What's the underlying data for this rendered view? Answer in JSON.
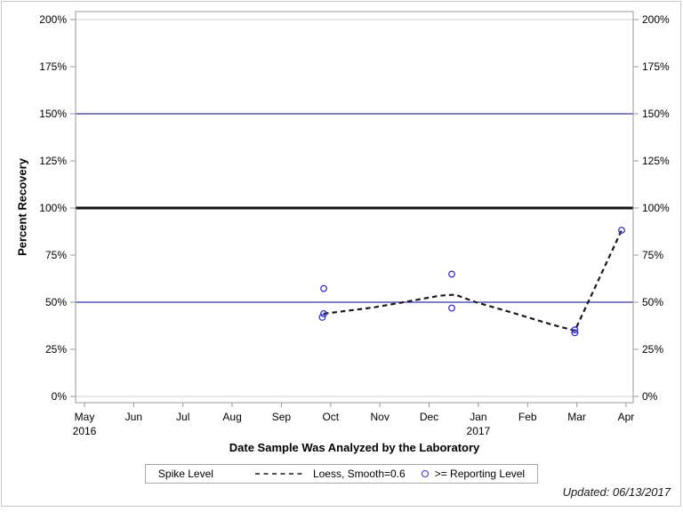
{
  "chart_data": {
    "type": "scatter",
    "title": "",
    "xlabel": "Date Sample Was Analyzed by the Laboratory",
    "ylabel": "Percent Recovery",
    "x_axis": {
      "unit": "month",
      "tick_labels": [
        "May",
        "Jun",
        "Jul",
        "Aug",
        "Sep",
        "Oct",
        "Nov",
        "Dec",
        "Jan",
        "Feb",
        "Mar",
        "Apr"
      ],
      "year_labels": [
        {
          "index": 0,
          "label": "2016"
        },
        {
          "index": 8,
          "label": "2017"
        }
      ],
      "range_note": "May 2016 through Apr 2017"
    },
    "y_axis": {
      "min": 0,
      "max": 200,
      "step": 25,
      "tick_labels": [
        "0%",
        "25%",
        "50%",
        "75%",
        "100%",
        "125%",
        "150%",
        "175%",
        "200%"
      ],
      "mirrored_right": true
    },
    "reference_lines": [
      {
        "value": 200,
        "color": "#d0d0d0",
        "width": 1
      },
      {
        "value": 150,
        "color": "#3434a8",
        "width": 1.2
      },
      {
        "value": 100,
        "color": "#151515",
        "width": 3
      },
      {
        "value": 50,
        "color": "#3434a8",
        "width": 1.2
      },
      {
        "value": 0,
        "color": "#d0d0d0",
        "width": 1
      }
    ],
    "series": [
      {
        "name": "Loess, Smooth=0.6",
        "type": "line",
        "style": "dashed",
        "color": "#1a1a1a",
        "x_unit": "months since 2016-05-01",
        "points": [
          {
            "x": 4.86,
            "y": 43.9
          },
          {
            "x": 5.87,
            "y": 47.2
          },
          {
            "x": 6.59,
            "y": 50.5
          },
          {
            "x": 7.22,
            "y": 53.5
          },
          {
            "x": 7.53,
            "y": 54.0
          },
          {
            "x": 7.95,
            "y": 50.0
          },
          {
            "x": 8.76,
            "y": 43.9
          },
          {
            "x": 9.48,
            "y": 38.2
          },
          {
            "x": 9.96,
            "y": 34.9
          },
          {
            "x": 10.91,
            "y": 88.2
          }
        ]
      },
      {
        "name": ">= Reporting Level",
        "type": "scatter",
        "marker": "open-circle",
        "color": "#3333cc",
        "x_unit": "months since 2016-05-01",
        "points": [
          {
            "x": 4.86,
            "y": 57.3,
            "date": "2016-09-26"
          },
          {
            "x": 4.86,
            "y": 43.9,
            "date": "2016-09-26"
          },
          {
            "x": 4.83,
            "y": 42.0,
            "date": "2016-09-25"
          },
          {
            "x": 7.46,
            "y": 64.9,
            "date": "2016-12-14"
          },
          {
            "x": 7.46,
            "y": 46.9,
            "date": "2016-12-14"
          },
          {
            "x": 9.96,
            "y": 35.3,
            "date": "2017-02-27"
          },
          {
            "x": 9.96,
            "y": 33.8,
            "date": "2017-02-27"
          },
          {
            "x": 10.91,
            "y": 88.2,
            "date": "2017-03-28"
          }
        ]
      }
    ],
    "grid": false,
    "legend_position": "bottom-center"
  },
  "legend": {
    "title": "Spike Level",
    "items": [
      {
        "label": "Loess, Smooth=0.6",
        "symbol": "dashed-line"
      },
      {
        "label": ">= Reporting Level",
        "symbol": "open-circle"
      }
    ]
  },
  "footer": {
    "updated": "Updated: 06/13/2017"
  },
  "colors": {
    "reference_blue": "#3434a8",
    "marker_blue": "#3333cc",
    "loess_black": "#1a1a1a",
    "frame_gray": "#9a9a9a",
    "outer_border_gray": "#c9c9c9"
  }
}
